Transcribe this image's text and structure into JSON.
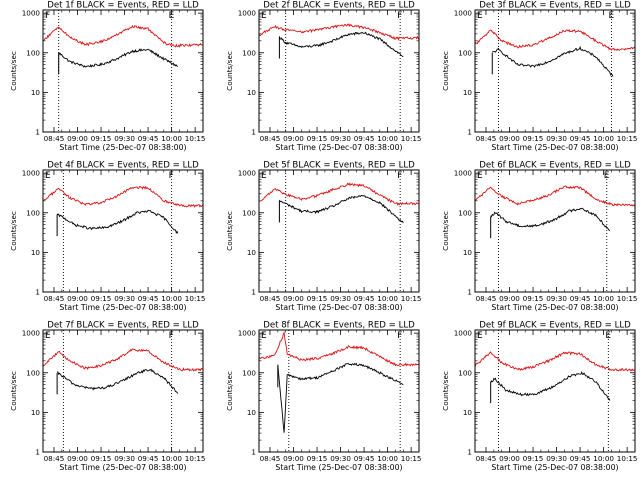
{
  "colors": {
    "events": "#000000",
    "lld": "#dd1111",
    "background": "#ffffff"
  },
  "chart_data": [
    {
      "type": "line",
      "title": "Det 1f BLACK = Events, RED = LLD",
      "xlabel": "Start Time (25-Dec-07 08:38:00)",
      "ylabel": "Counts/sec",
      "x_ticks": [
        "08:45",
        "09:00",
        "09:15",
        "09:30",
        "09:45",
        "10:00",
        "10:15"
      ],
      "y_ticks": [
        "1",
        "10",
        "100",
        "1000"
      ],
      "ylim": [
        1,
        1200
      ],
      "y_scale": "log",
      "x_range": [
        "08:38:00",
        "10:20:00"
      ],
      "markers": {
        "left": "08:48",
        "right": "10:00",
        "flags": [
          "F",
          "E"
        ]
      },
      "series": [
        {
          "name": "Events",
          "color": "#000000",
          "x": [
            "08:48",
            "08:55",
            "09:05",
            "09:15",
            "09:25",
            "09:35",
            "09:45",
            "09:55",
            "10:04"
          ],
          "values": [
            100,
            60,
            45,
            50,
            70,
            110,
            120,
            70,
            45
          ]
        },
        {
          "name": "LLD",
          "color": "#dd1111",
          "x": [
            "08:38",
            "08:48",
            "08:55",
            "09:05",
            "09:15",
            "09:25",
            "09:35",
            "09:45",
            "09:55",
            "10:00",
            "10:20"
          ],
          "values": [
            200,
            450,
            250,
            160,
            190,
            280,
            460,
            400,
            180,
            150,
            160
          ]
        }
      ]
    },
    {
      "type": "line",
      "title": "Det 2f BLACK = Events, RED = LLD",
      "xlabel": "Start Time (25-Dec-07 08:38:00)",
      "ylabel": "Counts/sec",
      "x_ticks": [
        "08:45",
        "09:00",
        "09:15",
        "09:30",
        "09:45",
        "10:00",
        "10:15"
      ],
      "y_ticks": [
        "1",
        "10",
        "100",
        "1000"
      ],
      "ylim": [
        1,
        1200
      ],
      "y_scale": "log",
      "x_range": [
        "08:38:00",
        "10:20:00"
      ],
      "markers": {
        "left": "08:55",
        "right": "10:08",
        "flags": [
          "E",
          "F"
        ]
      },
      "series": [
        {
          "name": "Events",
          "color": "#000000",
          "x": [
            "08:51",
            "08:55",
            "09:05",
            "09:15",
            "09:25",
            "09:35",
            "09:45",
            "09:55",
            "10:10"
          ],
          "values": [
            250,
            180,
            140,
            150,
            200,
            290,
            320,
            220,
            80
          ]
        },
        {
          "name": "LLD",
          "color": "#dd1111",
          "x": [
            "08:38",
            "08:48",
            "08:55",
            "09:05",
            "09:15",
            "09:25",
            "09:35",
            "09:45",
            "09:55",
            "10:05",
            "10:20"
          ],
          "values": [
            280,
            450,
            380,
            330,
            380,
            450,
            500,
            430,
            320,
            230,
            240
          ]
        }
      ]
    },
    {
      "type": "line",
      "title": "Det 3f BLACK = Events, RED = LLD",
      "xlabel": "Start Time (25-Dec-07 08:38:00)",
      "ylabel": "Counts/sec",
      "x_ticks": [
        "08:45",
        "09:00",
        "09:15",
        "09:30",
        "09:45",
        "10:00",
        "10:15"
      ],
      "y_ticks": [
        "1",
        "10",
        "100",
        "1000"
      ],
      "ylim": [
        1,
        1200
      ],
      "y_scale": "log",
      "x_range": [
        "08:38:00",
        "10:20:00"
      ],
      "markers": {
        "left": "08:53",
        "right": "10:05",
        "flags": [
          "E",
          "E"
        ]
      },
      "series": [
        {
          "name": "Events",
          "color": "#000000",
          "x": [
            "08:49",
            "08:53",
            "09:05",
            "09:15",
            "09:25",
            "09:35",
            "09:45",
            "09:55",
            "10:06"
          ],
          "values": [
            100,
            120,
            50,
            45,
            60,
            95,
            130,
            80,
            25
          ]
        },
        {
          "name": "LLD",
          "color": "#dd1111",
          "x": [
            "08:38",
            "08:48",
            "08:55",
            "09:05",
            "09:15",
            "09:25",
            "09:35",
            "09:45",
            "09:55",
            "10:05",
            "10:20"
          ],
          "values": [
            160,
            380,
            200,
            140,
            160,
            230,
            360,
            350,
            200,
            120,
            130
          ]
        }
      ]
    },
    {
      "type": "line",
      "title": "Det 4f BLACK = Events, RED = LLD",
      "xlabel": "Start Time (25-Dec-07 08:38:00)",
      "ylabel": "Counts/sec",
      "x_ticks": [
        "08:45",
        "09:00",
        "09:15",
        "09:30",
        "09:45",
        "10:00",
        "10:15"
      ],
      "y_ticks": [
        "1",
        "10",
        "100",
        "1000"
      ],
      "ylim": [
        1,
        1200
      ],
      "y_scale": "log",
      "x_range": [
        "08:38:00",
        "10:20:00"
      ],
      "markers": {
        "left": "08:51",
        "right": "10:00",
        "flags": [
          "E",
          "F"
        ]
      },
      "series": [
        {
          "name": "Events",
          "color": "#000000",
          "x": [
            "08:47",
            "08:50",
            "08:58",
            "09:08",
            "09:18",
            "09:28",
            "09:38",
            "09:46",
            "09:55",
            "10:04"
          ],
          "values": [
            90,
            80,
            50,
            40,
            42,
            60,
            100,
            110,
            75,
            30
          ]
        },
        {
          "name": "LLD",
          "color": "#dd1111",
          "x": [
            "08:38",
            "08:48",
            "08:55",
            "09:05",
            "09:15",
            "09:25",
            "09:35",
            "09:45",
            "09:55",
            "10:05",
            "10:20"
          ],
          "values": [
            190,
            420,
            240,
            160,
            180,
            260,
            440,
            420,
            200,
            150,
            150
          ]
        }
      ]
    },
    {
      "type": "line",
      "title": "Det 5f BLACK = Events, RED = LLD",
      "xlabel": "Start Time (25-Dec-07 08:38:00)",
      "ylabel": "Counts/sec",
      "x_ticks": [
        "08:45",
        "09:00",
        "09:15",
        "09:30",
        "09:45",
        "10:00",
        "10:15"
      ],
      "y_ticks": [
        "1",
        "10",
        "100",
        "1000"
      ],
      "ylim": [
        1,
        1200
      ],
      "y_scale": "log",
      "x_range": [
        "08:38:00",
        "10:20:00"
      ],
      "markers": {
        "left": "08:55",
        "right": "10:08",
        "flags": [
          "E",
          "F"
        ]
      },
      "series": [
        {
          "name": "Events",
          "color": "#000000",
          "x": [
            "08:51",
            "08:55",
            "09:05",
            "09:15",
            "09:25",
            "09:35",
            "09:45",
            "09:55",
            "10:10"
          ],
          "values": [
            200,
            170,
            110,
            105,
            145,
            230,
            270,
            180,
            55
          ]
        },
        {
          "name": "LLD",
          "color": "#dd1111",
          "x": [
            "08:38",
            "08:48",
            "08:55",
            "09:05",
            "09:15",
            "09:25",
            "09:35",
            "09:45",
            "09:55",
            "10:05",
            "10:20"
          ],
          "values": [
            190,
            400,
            290,
            220,
            270,
            380,
            520,
            480,
            280,
            170,
            170
          ]
        }
      ]
    },
    {
      "type": "line",
      "title": "Det 6f BLACK = Events, RED = LLD",
      "xlabel": "Start Time (25-Dec-07 08:38:00)",
      "ylabel": "Counts/sec",
      "x_ticks": [
        "08:45",
        "09:00",
        "09:15",
        "09:30",
        "09:45",
        "10:00",
        "10:15"
      ],
      "y_ticks": [
        "1",
        "10",
        "100",
        "1000"
      ],
      "ylim": [
        1,
        1200
      ],
      "y_scale": "log",
      "x_range": [
        "08:38:00",
        "10:20:00"
      ],
      "markers": {
        "left": "08:53",
        "right": "10:02",
        "flags": [
          "E",
          "E"
        ]
      },
      "series": [
        {
          "name": "Events",
          "color": "#000000",
          "x": [
            "08:48",
            "08:51",
            "08:58",
            "09:08",
            "09:18",
            "09:28",
            "09:38",
            "09:46",
            "09:55",
            "10:04"
          ],
          "values": [
            80,
            100,
            60,
            45,
            48,
            65,
            110,
            130,
            85,
            35
          ]
        },
        {
          "name": "LLD",
          "color": "#dd1111",
          "x": [
            "08:38",
            "08:48",
            "08:55",
            "09:05",
            "09:15",
            "09:25",
            "09:35",
            "09:45",
            "09:55",
            "10:05",
            "10:20"
          ],
          "values": [
            200,
            440,
            260,
            170,
            200,
            280,
            450,
            430,
            220,
            160,
            160
          ]
        }
      ]
    },
    {
      "type": "line",
      "title": "Det 7f BLACK = Events, RED = LLD",
      "xlabel": "Start Time (25-Dec-07 08:38:00)",
      "ylabel": "Counts/sec",
      "x_ticks": [
        "08:45",
        "09:00",
        "09:15",
        "09:30",
        "09:45",
        "10:00",
        "10:15"
      ],
      "y_ticks": [
        "1",
        "10",
        "100",
        "1000"
      ],
      "ylim": [
        1,
        1200
      ],
      "y_scale": "log",
      "x_range": [
        "08:38:00",
        "10:20:00"
      ],
      "markers": {
        "left": "08:51",
        "right": "10:00",
        "flags": [
          "E",
          "F"
        ]
      },
      "series": [
        {
          "name": "Events",
          "color": "#000000",
          "x": [
            "08:47",
            "08:50",
            "08:58",
            "09:08",
            "09:18",
            "09:28",
            "09:38",
            "09:46",
            "09:55",
            "10:04"
          ],
          "values": [
            100,
            85,
            50,
            40,
            42,
            60,
            100,
            120,
            75,
            30
          ]
        },
        {
          "name": "LLD",
          "color": "#dd1111",
          "x": [
            "08:38",
            "08:48",
            "08:55",
            "09:05",
            "09:15",
            "09:25",
            "09:35",
            "09:45",
            "09:55",
            "10:05",
            "10:20"
          ],
          "values": [
            150,
            340,
            200,
            130,
            150,
            220,
            380,
            360,
            180,
            120,
            120
          ]
        }
      ]
    },
    {
      "type": "line",
      "title": "Det 8f BLACK = Events, RED = LLD",
      "xlabel": "Start Time (25-Dec-07 08:38:00)",
      "ylabel": "Counts/sec",
      "x_ticks": [
        "08:45",
        "09:00",
        "09:15",
        "09:30",
        "09:45",
        "10:00",
        "10:15"
      ],
      "y_ticks": [
        "1",
        "10",
        "100",
        "1000"
      ],
      "ylim": [
        1,
        1200
      ],
      "y_scale": "log",
      "x_range": [
        "08:38:00",
        "10:20:00"
      ],
      "markers": {
        "left": "08:57",
        "right": "10:08",
        "flags": [
          "E",
          "F"
        ]
      },
      "series": [
        {
          "name": "Events",
          "color": "#000000",
          "x": [
            "08:50",
            "08:54",
            "08:56",
            "09:05",
            "09:15",
            "09:25",
            "09:35",
            "09:45",
            "09:55",
            "10:10"
          ],
          "values": [
            150,
            3,
            90,
            70,
            75,
            110,
            170,
            150,
            100,
            50
          ]
        },
        {
          "name": "LLD",
          "color": "#dd1111",
          "x": [
            "08:38",
            "08:48",
            "08:54",
            "08:56",
            "09:05",
            "09:15",
            "09:25",
            "09:35",
            "09:45",
            "09:55",
            "10:05",
            "10:20"
          ],
          "values": [
            220,
            280,
            1000,
            300,
            210,
            230,
            300,
            450,
            420,
            250,
            160,
            160
          ]
        }
      ]
    },
    {
      "type": "line",
      "title": "Det 9f BLACK = Events, RED = LLD",
      "xlabel": "Start Time (25-Dec-07 08:38:00)",
      "ylabel": "Counts/sec",
      "x_ticks": [
        "08:45",
        "09:00",
        "09:15",
        "09:30",
        "09:45",
        "10:00",
        "10:15"
      ],
      "y_ticks": [
        "1",
        "10",
        "100",
        "1000"
      ],
      "ylim": [
        1,
        1200
      ],
      "y_scale": "log",
      "x_range": [
        "08:38:00",
        "10:20:00"
      ],
      "markers": {
        "left": "08:53",
        "right": "10:03",
        "flags": [
          "E",
          "E"
        ]
      },
      "series": [
        {
          "name": "Events",
          "color": "#000000",
          "x": [
            "08:48",
            "08:51",
            "08:58",
            "09:08",
            "09:18",
            "09:28",
            "09:38",
            "09:46",
            "09:55",
            "10:04"
          ],
          "values": [
            60,
            70,
            35,
            28,
            30,
            45,
            80,
            100,
            60,
            20
          ]
        },
        {
          "name": "LLD",
          "color": "#dd1111",
          "x": [
            "08:38",
            "08:48",
            "08:55",
            "09:05",
            "09:15",
            "09:25",
            "09:35",
            "09:45",
            "09:55",
            "10:05",
            "10:20"
          ],
          "values": [
            150,
            330,
            180,
            120,
            140,
            200,
            320,
            300,
            160,
            120,
            120
          ]
        }
      ]
    }
  ]
}
